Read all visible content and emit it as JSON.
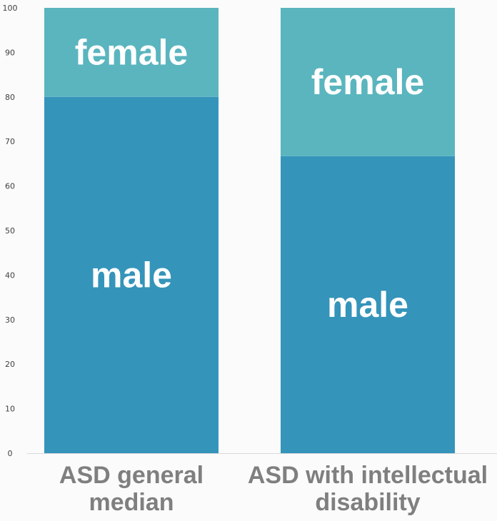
{
  "chart_data": {
    "type": "bar",
    "stacked": true,
    "categories": [
      [
        "ASD general",
        "median"
      ],
      [
        "ASD with intellectual",
        "disability"
      ]
    ],
    "series": [
      {
        "name": "male",
        "values": [
          80,
          66.7
        ],
        "color": "#3594ba"
      },
      {
        "name": "female",
        "values": [
          20,
          33.3
        ],
        "color": "#5ab5be"
      }
    ],
    "ylim": [
      0,
      100
    ],
    "yticks": [
      0,
      10,
      20,
      30,
      40,
      50,
      60,
      70,
      80,
      90,
      100
    ],
    "grid": false,
    "legend": "none",
    "title": "",
    "xlabel": "",
    "ylabel": ""
  }
}
